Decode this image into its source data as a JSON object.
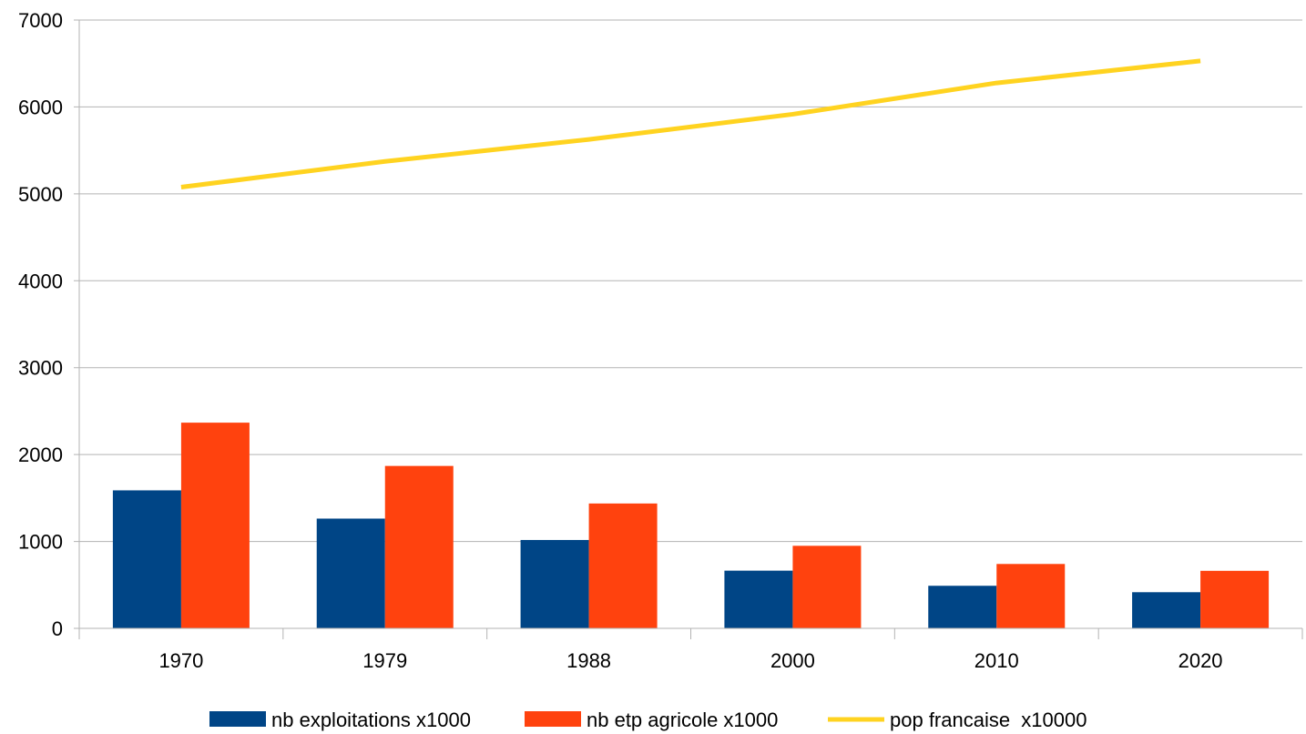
{
  "chart_data": {
    "type": "bar",
    "categories": [
      "1970",
      "1979",
      "1988",
      "2000",
      "2010",
      "2020"
    ],
    "ylim": [
      0,
      7000
    ],
    "yticks": [
      "0",
      "1000",
      "2000",
      "3000",
      "4000",
      "5000",
      "6000",
      "7000"
    ],
    "grid": true,
    "legend_position": "bottom",
    "series": [
      {
        "name": "nb exploitations x1000",
        "kind": "bar",
        "color": "#004586",
        "values": [
          1588,
          1263,
          1017,
          664,
          490,
          416
        ]
      },
      {
        "name": "nb etp agricole x1000",
        "kind": "bar",
        "color": "#ff420e",
        "values": [
          2367,
          1869,
          1437,
          950,
          741,
          662
        ]
      },
      {
        "name": "pop francaise  x10000",
        "kind": "line",
        "color": "#ffd320",
        "values": [
          5077,
          5373,
          5626,
          5916,
          6276,
          6530
        ]
      }
    ]
  }
}
